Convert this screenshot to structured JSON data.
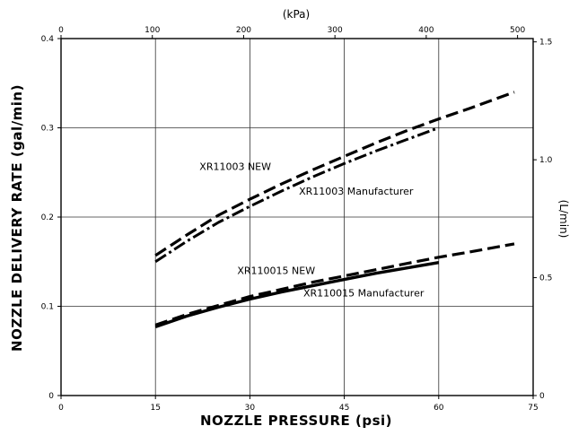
{
  "chart_data": {
    "type": "line",
    "title": "",
    "xlabel": "NOZZLE PRESSURE (psi)",
    "ylabel": "NOZZLE DELIVERY RATE (gal/min)",
    "x2label": "(kPa)",
    "y2label": "(L/min)",
    "xlim": [
      0,
      75
    ],
    "ylim": [
      0,
      0.4
    ],
    "xticks": [
      "0",
      "15",
      "30",
      "45",
      "60",
      "75"
    ],
    "yticks": [
      "0",
      "0.1",
      "0.2",
      "0.3",
      "0.4"
    ],
    "x2lim": [
      0,
      517.1
    ],
    "x2ticks": [
      "0",
      "100",
      "200",
      "300",
      "400",
      "500"
    ],
    "y2lim": [
      0,
      1.514
    ],
    "y2ticks": [
      "0",
      "0.5",
      "1.0",
      "1.5"
    ],
    "grid": true,
    "series": [
      {
        "name": "XR11003 NEW",
        "style": "dashed",
        "x": [
          15,
          20,
          25,
          30,
          35,
          40,
          45,
          50,
          55,
          60,
          65,
          72
        ],
        "y": [
          0.157,
          0.18,
          0.202,
          0.22,
          0.237,
          0.253,
          0.268,
          0.283,
          0.297,
          0.31,
          0.322,
          0.34
        ]
      },
      {
        "name": "XR11003 Manufacturer",
        "style": "dash-dot",
        "x": [
          15,
          20,
          25,
          30,
          35,
          40,
          45,
          50,
          55,
          60
        ],
        "y": [
          0.15,
          0.173,
          0.194,
          0.212,
          0.229,
          0.245,
          0.26,
          0.274,
          0.287,
          0.3
        ]
      },
      {
        "name": "XR110015 NEW",
        "style": "dashed",
        "x": [
          15,
          20,
          25,
          30,
          35,
          40,
          45,
          50,
          55,
          60,
          65,
          72
        ],
        "y": [
          0.079,
          0.091,
          0.101,
          0.111,
          0.119,
          0.127,
          0.134,
          0.141,
          0.148,
          0.155,
          0.161,
          0.17
        ]
      },
      {
        "name": "XR110015 Manufacturer",
        "style": "solid",
        "x": [
          15,
          20,
          25,
          30,
          35,
          40,
          45,
          50,
          55,
          60
        ],
        "y": [
          0.077,
          0.089,
          0.099,
          0.108,
          0.116,
          0.123,
          0.13,
          0.137,
          0.143,
          0.149
        ]
      }
    ],
    "annotations": [
      {
        "text": "XR11003  NEW",
        "x": 22,
        "y": 0.253
      },
      {
        "text": "XR11003  Manufacturer",
        "x": 37.8,
        "y": 0.225
      },
      {
        "text": "XR110015  NEW",
        "x": 28,
        "y": 0.136
      },
      {
        "text": "XR110015  Manufacturer",
        "x": 38.5,
        "y": 0.111
      }
    ]
  }
}
